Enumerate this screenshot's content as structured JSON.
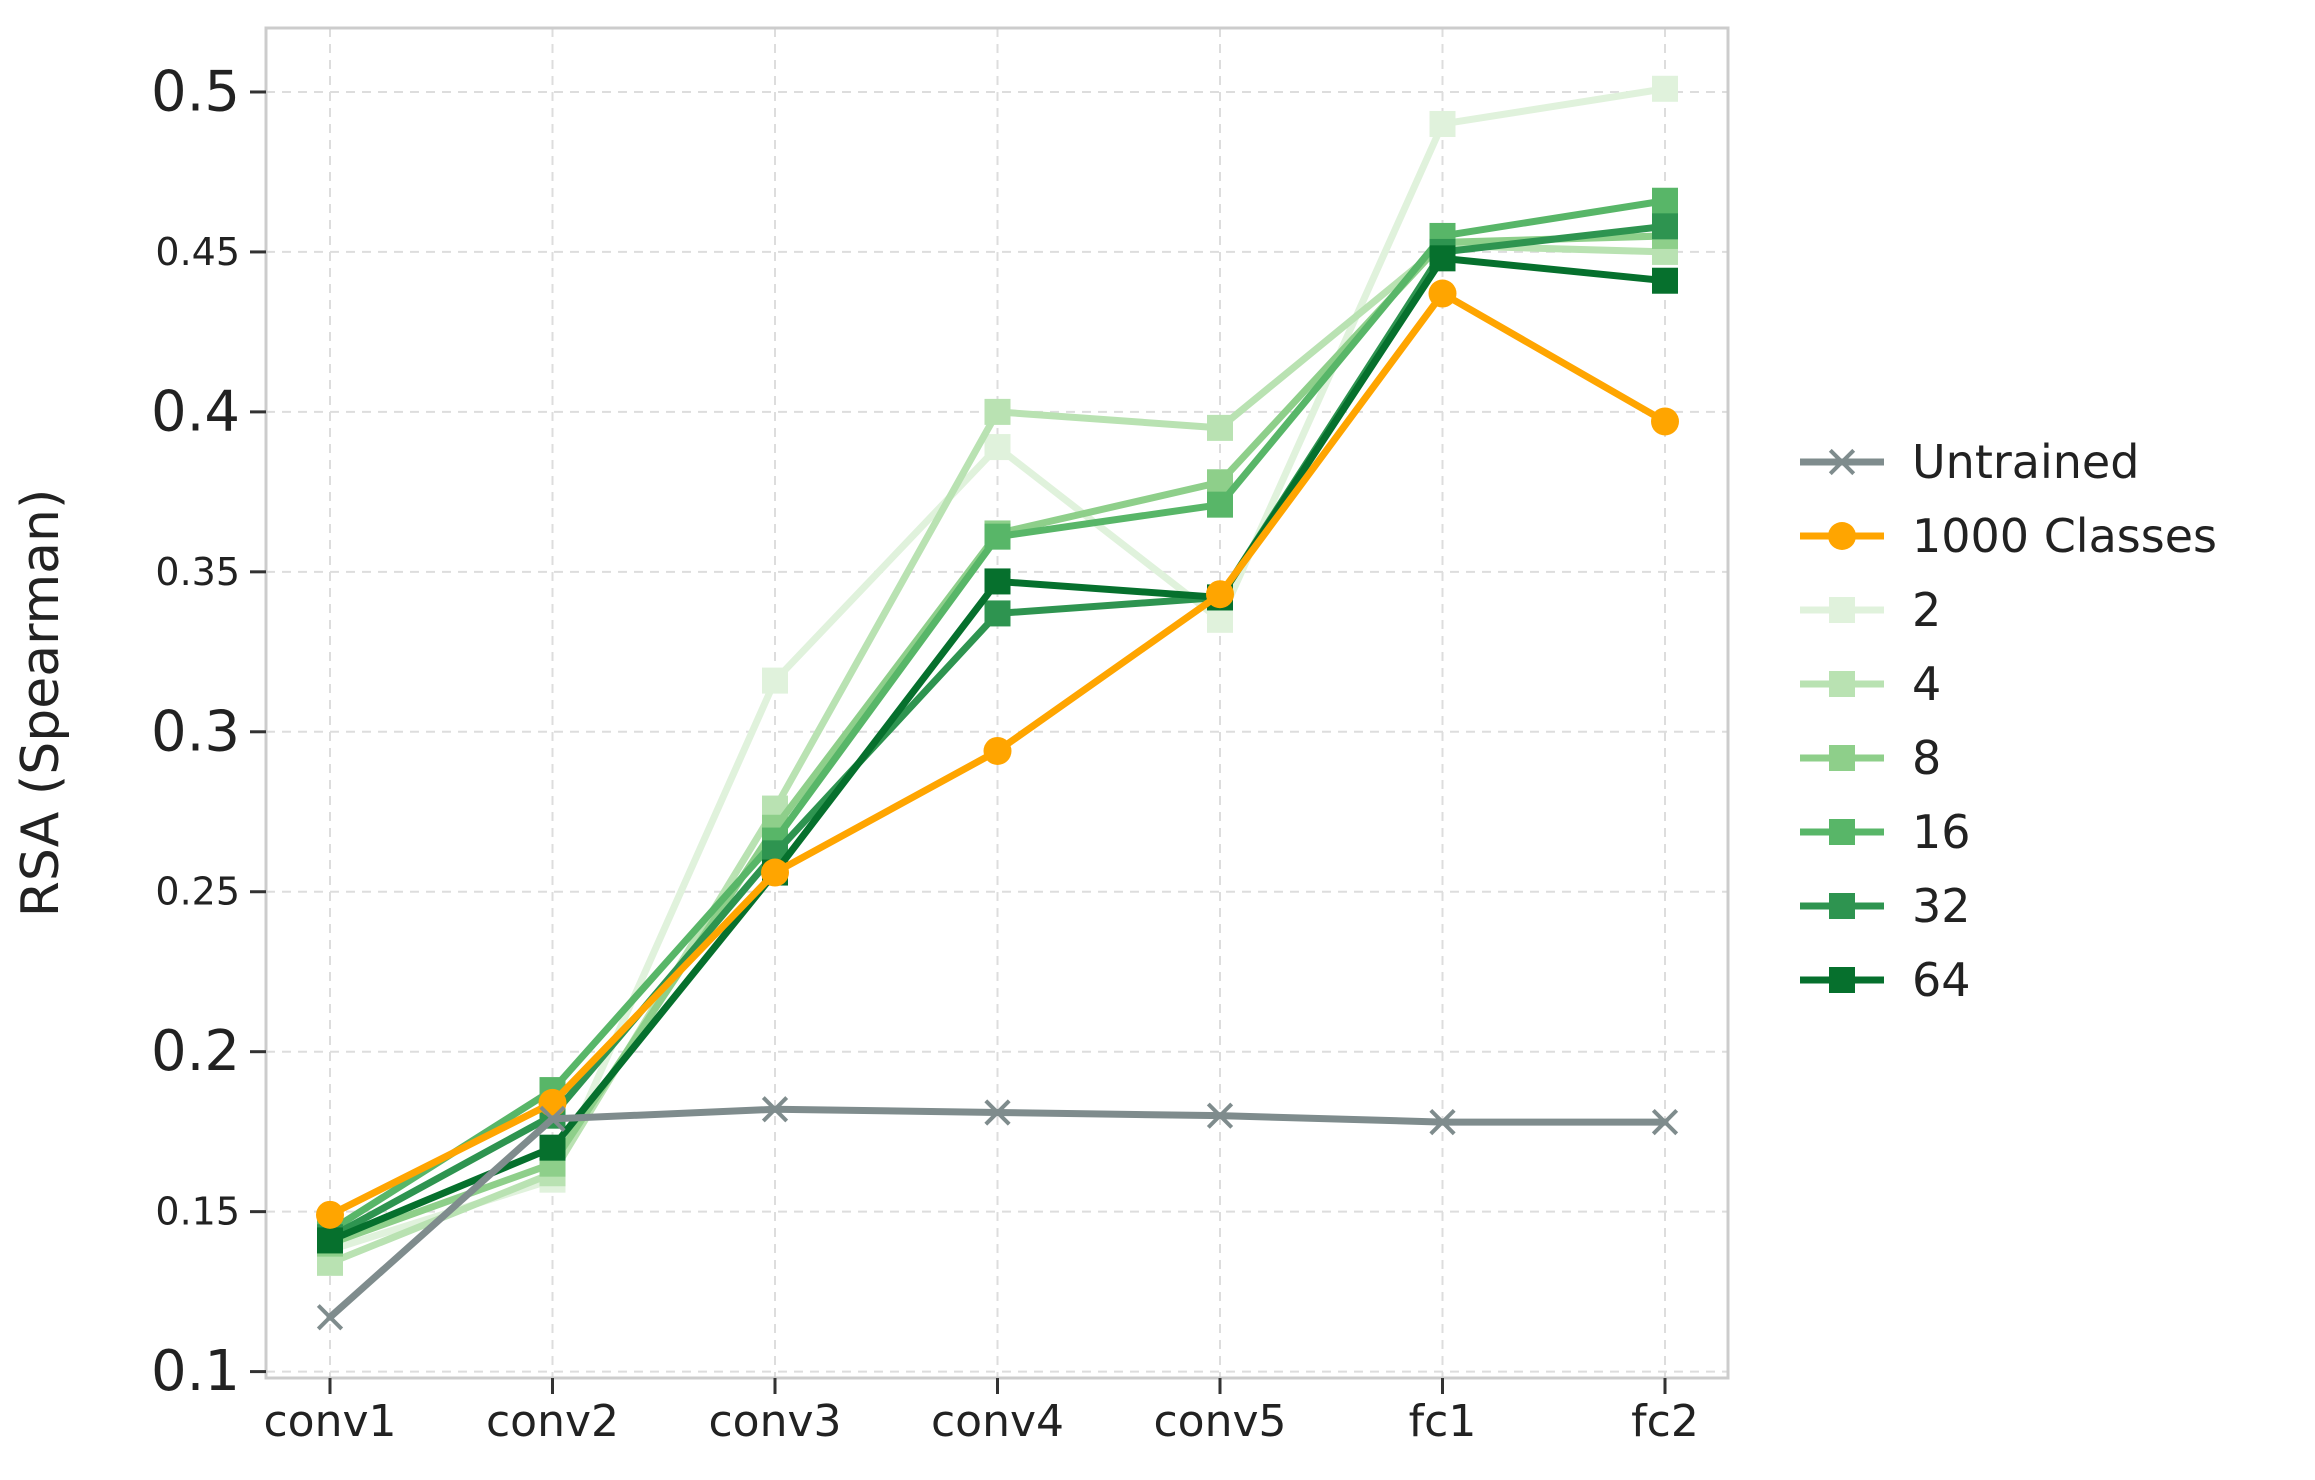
{
  "chart_data": {
    "type": "line",
    "ylabel": "RSA (Spearman)",
    "xlabel": "",
    "categories": [
      "conv1",
      "conv2",
      "conv3",
      "conv4",
      "conv5",
      "fc1",
      "fc2"
    ],
    "ylim": [
      0.098,
      0.52
    ],
    "y_ticks": [
      {
        "value": 0.1,
        "label": "0.1",
        "major": true
      },
      {
        "value": 0.15,
        "label": "0.15",
        "major": false
      },
      {
        "value": 0.2,
        "label": "0.2",
        "major": true
      },
      {
        "value": 0.25,
        "label": "0.25",
        "major": false
      },
      {
        "value": 0.3,
        "label": "0.3",
        "major": true
      },
      {
        "value": 0.35,
        "label": "0.35",
        "major": false
      },
      {
        "value": 0.4,
        "label": "0.4",
        "major": true
      },
      {
        "value": 0.45,
        "label": "0.45",
        "major": false
      },
      {
        "value": 0.5,
        "label": "0.5",
        "major": true
      }
    ],
    "grid": true,
    "legend_position": "right",
    "series": [
      {
        "name": "2",
        "color": "#e0f2dc",
        "marker": "square",
        "values": [
          0.138,
          0.16,
          0.316,
          0.389,
          0.335,
          0.49,
          0.501
        ]
      },
      {
        "name": "4",
        "color": "#b9e2b2",
        "marker": "square",
        "values": [
          0.134,
          0.162,
          0.276,
          0.4,
          0.395,
          0.452,
          0.45
        ]
      },
      {
        "name": "8",
        "color": "#8ecf8a",
        "marker": "square",
        "values": [
          0.14,
          0.165,
          0.27,
          0.362,
          0.378,
          0.453,
          0.455
        ]
      },
      {
        "name": "16",
        "color": "#58b668",
        "marker": "square",
        "values": [
          0.144,
          0.188,
          0.266,
          0.361,
          0.371,
          0.455,
          0.466
        ]
      },
      {
        "name": "32",
        "color": "#2e9450",
        "marker": "square",
        "values": [
          0.142,
          0.18,
          0.262,
          0.337,
          0.342,
          0.45,
          0.458
        ]
      },
      {
        "name": "64",
        "color": "#06702d",
        "marker": "square",
        "values": [
          0.141,
          0.17,
          0.256,
          0.347,
          0.342,
          0.448,
          0.441
        ]
      },
      {
        "name": "1000 Classes",
        "color": "#ffa500",
        "marker": "circle",
        "values": [
          0.149,
          0.184,
          0.256,
          0.294,
          0.343,
          0.437,
          0.397
        ]
      },
      {
        "name": "Untrained",
        "color": "#7f8c8d",
        "marker": "x",
        "values": [
          0.117,
          0.179,
          0.182,
          0.181,
          0.18,
          0.178,
          0.178
        ]
      }
    ],
    "legend_order": [
      "Untrained",
      "1000 Classes",
      "2",
      "4",
      "8",
      "16",
      "32",
      "64"
    ]
  }
}
